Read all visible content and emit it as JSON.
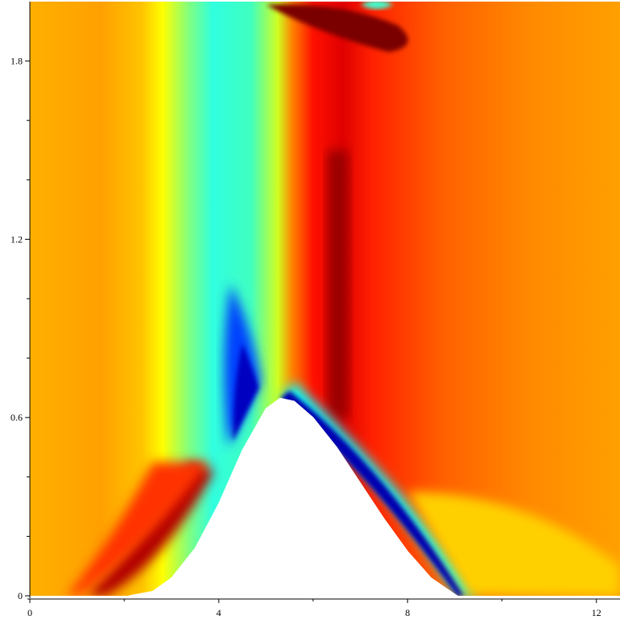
{
  "chart_data": {
    "type": "heatmap",
    "title": "",
    "xlabel": "",
    "ylabel": "",
    "xlim": [
      0,
      12.5
    ],
    "ylim": [
      0,
      2.0
    ],
    "x_ticks": [
      {
        "value": 0,
        "label": "0"
      },
      {
        "value": 4,
        "label": "4"
      },
      {
        "value": 8,
        "label": "8"
      },
      {
        "value": 12,
        "label": "12"
      }
    ],
    "y_ticks": [
      {
        "value": 0,
        "label": "0"
      },
      {
        "value": 0.6,
        "label": "0.6"
      },
      {
        "value": 1.2,
        "label": "1.2"
      },
      {
        "value": 1.8,
        "label": "1.8"
      }
    ],
    "x_minor_ticks": [
      2,
      6,
      10
    ],
    "y_minor_ticks": [
      0.2,
      0.4,
      0.8,
      1.0,
      1.4,
      1.6
    ],
    "colormap": "jet",
    "colormap_stops": [
      "#00007f",
      "#0000ff",
      "#00ffff",
      "#ffff00",
      "#ff7f00",
      "#ff0000",
      "#7f0000"
    ],
    "grid": false,
    "obstacle": {
      "shape": "bump",
      "fill": "#ffffff",
      "outline_x": [
        2.1,
        2.6,
        3.0,
        3.5,
        4.0,
        4.5,
        5.0,
        5.3,
        5.6,
        6.0,
        6.5,
        7.0,
        7.5,
        8.0,
        8.5,
        9.05
      ],
      "outline_y": [
        0.0,
        0.015,
        0.06,
        0.16,
        0.31,
        0.49,
        0.63,
        0.665,
        0.655,
        0.6,
        0.5,
        0.38,
        0.26,
        0.15,
        0.06,
        0.0
      ]
    }
  }
}
